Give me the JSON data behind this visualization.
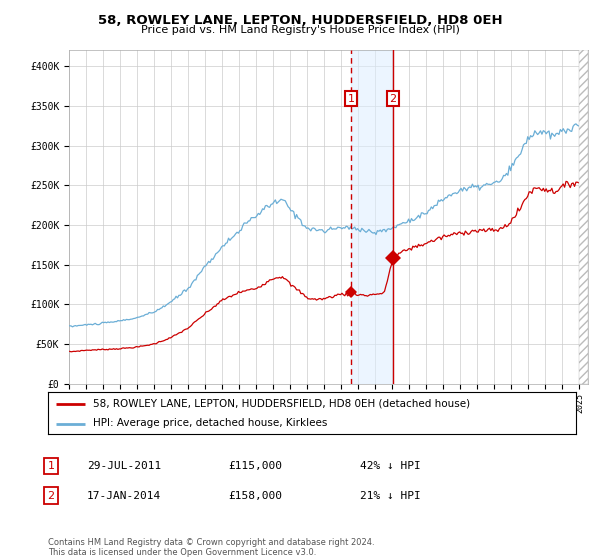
{
  "title": "58, ROWLEY LANE, LEPTON, HUDDERSFIELD, HD8 0EH",
  "subtitle": "Price paid vs. HM Land Registry's House Price Index (HPI)",
  "legend_line1": "58, ROWLEY LANE, LEPTON, HUDDERSFIELD, HD8 0EH (detached house)",
  "legend_line2": "HPI: Average price, detached house, Kirklees",
  "annotation1_date": "29-JUL-2011",
  "annotation1_price": "£115,000",
  "annotation1_hpi": "42% ↓ HPI",
  "annotation2_date": "17-JAN-2014",
  "annotation2_price": "£158,000",
  "annotation2_hpi": "21% ↓ HPI",
  "footer": "Contains HM Land Registry data © Crown copyright and database right 2024.\nThis data is licensed under the Open Government Licence v3.0.",
  "hpi_color": "#6baed6",
  "price_color": "#cc0000",
  "bg_color": "#ffffff",
  "grid_color": "#cccccc",
  "sale1_x": 2011.57,
  "sale1_y": 115000,
  "sale2_x": 2014.04,
  "sale2_y": 158000,
  "xlim": [
    1995,
    2025.5
  ],
  "ylim": [
    0,
    420000
  ],
  "shade_x1": 2011.57,
  "shade_x2": 2014.04,
  "hpi_anchors_x": [
    1995,
    1996,
    1997,
    1998,
    1999,
    2000,
    2001,
    2002,
    2003,
    2004,
    2005,
    2006,
    2007,
    2007.6,
    2008.0,
    2008.5,
    2009,
    2009.5,
    2010,
    2011,
    2012,
    2012.5,
    2013,
    2014,
    2015,
    2016,
    2017,
    2018,
    2019,
    2020,
    2020.5,
    2021,
    2021.5,
    2022,
    2022.5,
    2023,
    2023.5,
    2024,
    2024.5,
    2025
  ],
  "hpi_anchors_y": [
    72000,
    74000,
    76000,
    79000,
    83000,
    90000,
    103000,
    120000,
    148000,
    172000,
    193000,
    212000,
    228000,
    231000,
    220000,
    208000,
    196000,
    194000,
    192000,
    197000,
    195000,
    193000,
    190000,
    196000,
    206000,
    215000,
    233000,
    244000,
    248000,
    252000,
    258000,
    272000,
    290000,
    310000,
    318000,
    315000,
    312000,
    318000,
    322000,
    325000
  ],
  "price_anchors_x": [
    1995,
    1996,
    1997,
    1998,
    1999,
    2000,
    2001,
    2002,
    2003,
    2004,
    2005,
    2006,
    2007,
    2007.6,
    2008.0,
    2008.5,
    2009,
    2009.5,
    2010,
    2011,
    2011.5,
    2011.57,
    2012,
    2012.5,
    2013,
    2013.5,
    2014.04,
    2014.5,
    2015,
    2016,
    2017,
    2018,
    2019,
    2020,
    2020.5,
    2021,
    2021.5,
    2022,
    2022.5,
    2023,
    2023.5,
    2024,
    2024.5,
    2025
  ],
  "price_anchors_y": [
    40000,
    42000,
    43000,
    44000,
    46000,
    50000,
    58000,
    70000,
    88000,
    105000,
    115000,
    120000,
    133000,
    135000,
    125000,
    117000,
    108000,
    106000,
    107000,
    113000,
    112000,
    115000,
    112000,
    111000,
    113000,
    113000,
    158000,
    165000,
    170000,
    177000,
    185000,
    190000,
    193000,
    193000,
    196000,
    205000,
    220000,
    240000,
    247000,
    245000,
    242000,
    248000,
    252000,
    255000
  ]
}
